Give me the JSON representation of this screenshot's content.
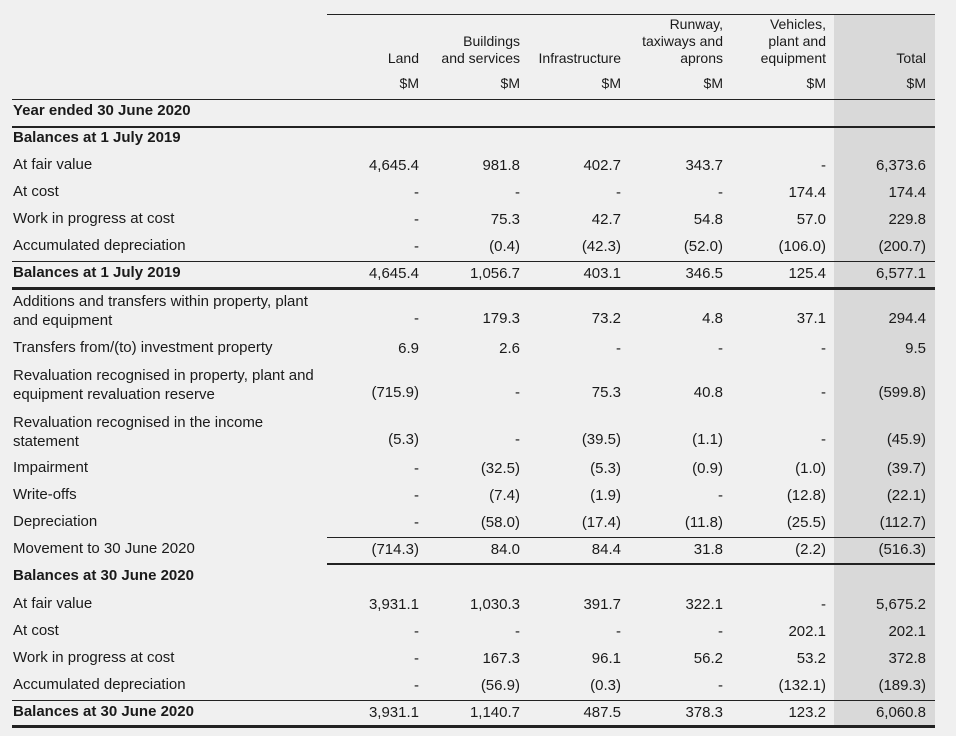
{
  "columns": [
    {
      "header": "Land",
      "unit": "$M"
    },
    {
      "header": "Buildings\nand services",
      "unit": "$M"
    },
    {
      "header": "Infrastructure",
      "unit": "$M"
    },
    {
      "header": "Runway,\ntaxiways and\naprons",
      "unit": "$M"
    },
    {
      "header": "Vehicles,\nplant and\nequipment",
      "unit": "$M"
    },
    {
      "header": "Total",
      "unit": "$M"
    }
  ],
  "rows": [
    {
      "label": "Year ended 30 June 2020",
      "bold": true,
      "values": []
    },
    {
      "label": "Balances at 1 July 2019",
      "bold": true,
      "values": []
    },
    {
      "label": "At fair value",
      "values": [
        "4,645.4",
        "981.8",
        "402.7",
        "343.7",
        "-",
        "6,373.6"
      ]
    },
    {
      "label": "At cost",
      "values": [
        "-",
        "-",
        "-",
        "-",
        "174.4",
        "174.4"
      ]
    },
    {
      "label": "Work in progress at cost",
      "values": [
        "-",
        "75.3",
        "42.7",
        "54.8",
        "57.0",
        "229.8"
      ]
    },
    {
      "label": "Accumulated depreciation",
      "values": [
        "-",
        "(0.4)",
        "(42.3)",
        "(52.0)",
        "(106.0)",
        "(200.7)"
      ]
    },
    {
      "label": "Balances at 1 July 2019",
      "bold": true,
      "values": [
        "4,645.4",
        "1,056.7",
        "403.1",
        "346.5",
        "125.4",
        "6,577.1"
      ]
    },
    {
      "label": "Additions and transfers within property, plant\nand equipment",
      "values": [
        "-",
        "179.3",
        "73.2",
        "4.8",
        "37.1",
        "294.4"
      ]
    },
    {
      "label": "Transfers from/(to) investment property",
      "values": [
        "6.9",
        "2.6",
        "-",
        "-",
        "-",
        "9.5"
      ]
    },
    {
      "label": "Revaluation recognised in property, plant and\nequipment revaluation reserve",
      "values": [
        "(715.9)",
        "-",
        "75.3",
        "40.8",
        "-",
        "(599.8)"
      ]
    },
    {
      "label": "Revaluation recognised in the income\nstatement",
      "values": [
        "(5.3)",
        "-",
        "(39.5)",
        "(1.1)",
        "-",
        "(45.9)"
      ]
    },
    {
      "label": "Impairment",
      "values": [
        "-",
        "(32.5)",
        "(5.3)",
        "(0.9)",
        "(1.0)",
        "(39.7)"
      ]
    },
    {
      "label": "Write-offs",
      "values": [
        "-",
        "(7.4)",
        "(1.9)",
        "-",
        "(12.8)",
        "(22.1)"
      ]
    },
    {
      "label": "Depreciation",
      "values": [
        "-",
        "(58.0)",
        "(17.4)",
        "(11.8)",
        "(25.5)",
        "(112.7)"
      ]
    },
    {
      "label": "Movement to 30 June 2020",
      "values": [
        "(714.3)",
        "84.0",
        "84.4",
        "31.8",
        "(2.2)",
        "(516.3)"
      ]
    },
    {
      "label": "Balances at 30 June 2020",
      "bold": true,
      "values": []
    },
    {
      "label": "At fair value",
      "values": [
        "3,931.1",
        "1,030.3",
        "391.7",
        "322.1",
        "-",
        "5,675.2"
      ]
    },
    {
      "label": "At cost",
      "values": [
        "-",
        "-",
        "-",
        "-",
        "202.1",
        "202.1"
      ]
    },
    {
      "label": "Work in progress at cost",
      "values": [
        "-",
        "167.3",
        "96.1",
        "56.2",
        "53.2",
        "372.8"
      ]
    },
    {
      "label": "Accumulated depreciation",
      "values": [
        "-",
        "(56.9)",
        "(0.3)",
        "-",
        "(132.1)",
        "(189.3)"
      ]
    },
    {
      "label": "Balances at 30 June 2020",
      "bold": true,
      "values": [
        "3,931.1",
        "1,140.7",
        "487.5",
        "378.3",
        "123.2",
        "6,060.8"
      ]
    }
  ]
}
